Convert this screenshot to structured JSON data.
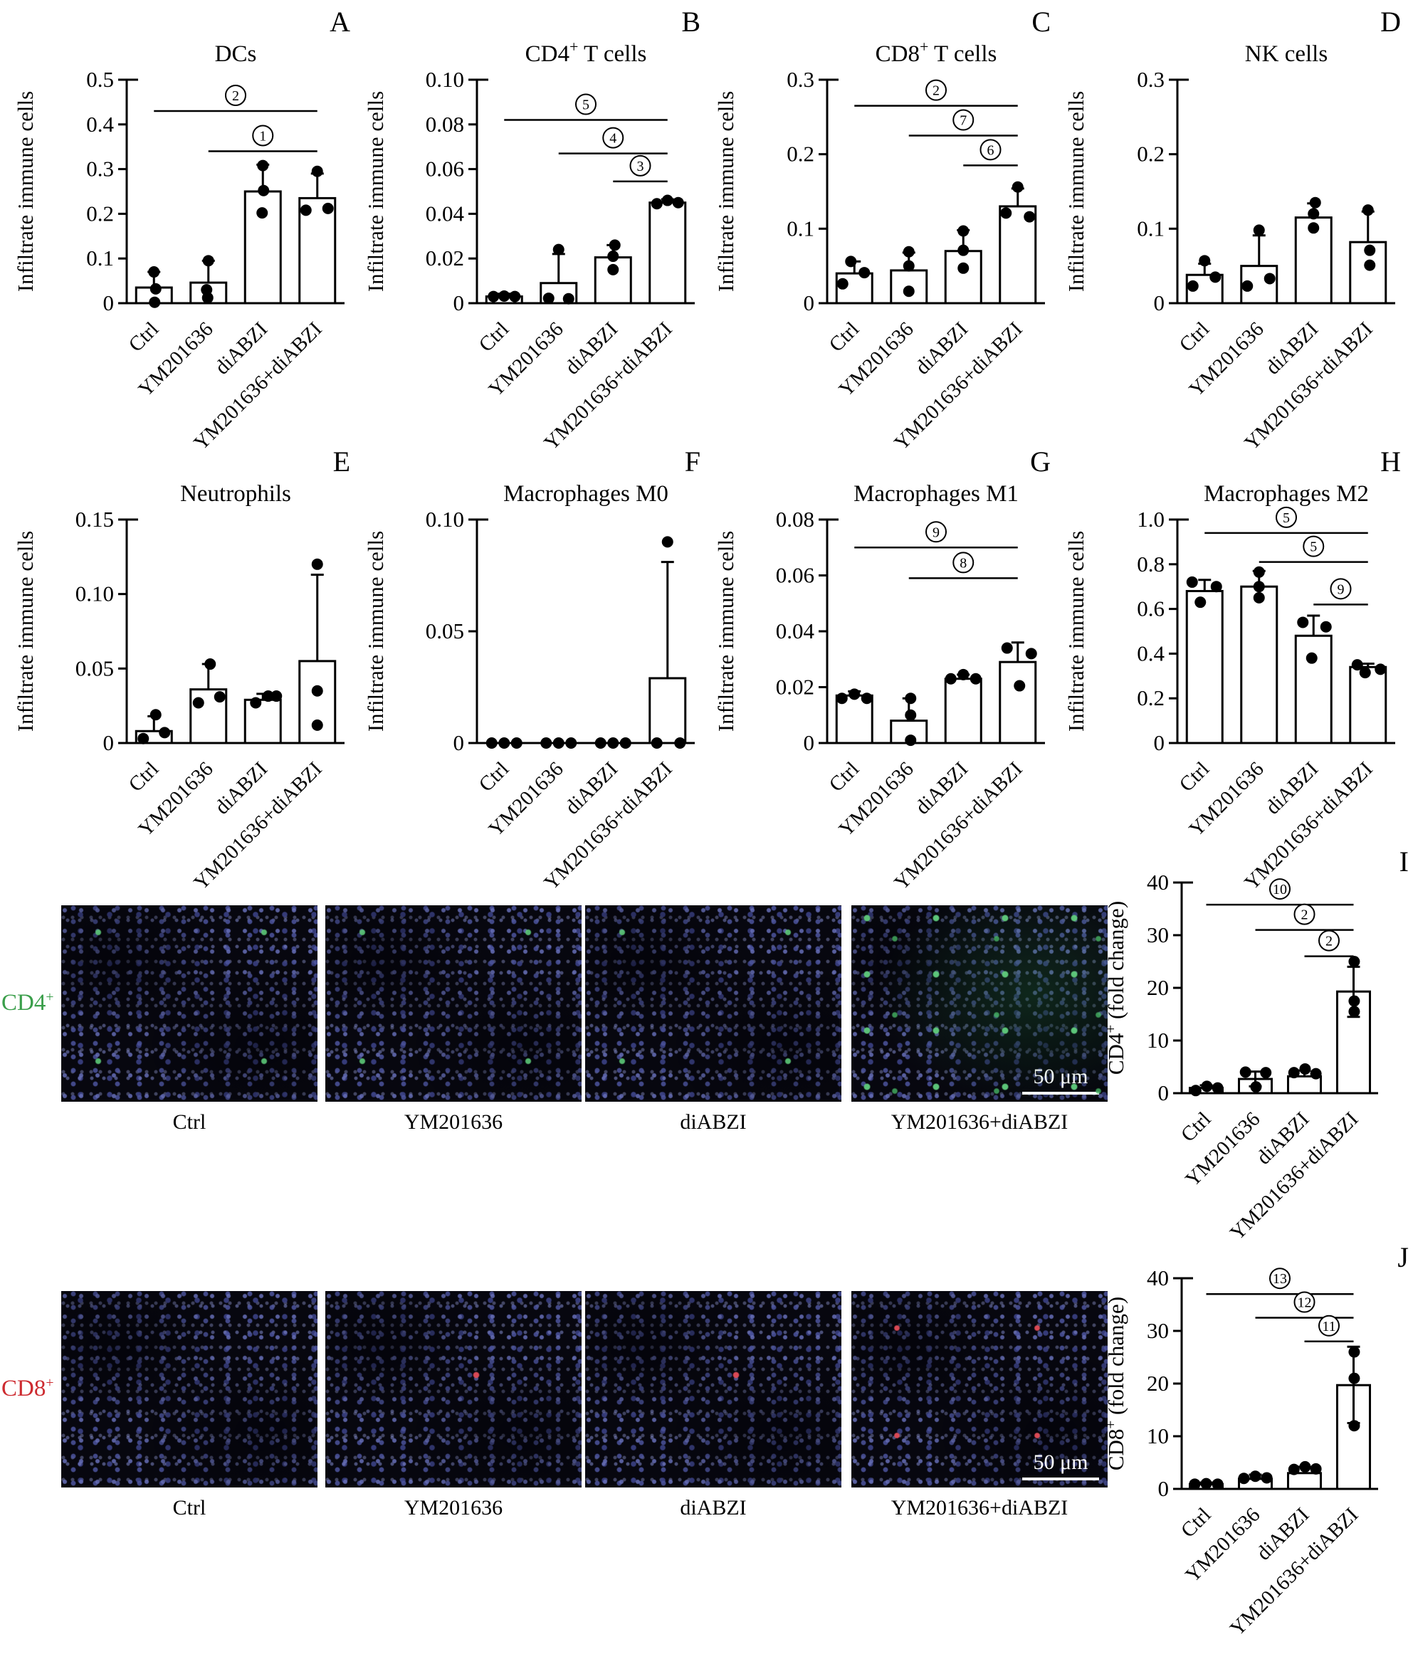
{
  "figure": {
    "panel_letters": [
      "A",
      "B",
      "C",
      "D",
      "E",
      "F",
      "G",
      "H",
      "I",
      "J"
    ],
    "groups": [
      "Ctrl",
      "YM201636",
      "diABZI",
      "YM201636+diABZI"
    ]
  },
  "chart_data": [
    {
      "letter": "A",
      "type": "bar",
      "title_pre": "DCs",
      "title_sup": null,
      "title_post": "",
      "ylabel_pre": "Infiltrate immune cells",
      "ylabel_sup": null,
      "ylabel_post": "",
      "ylim": [
        0,
        0.5
      ],
      "yticks": [
        0,
        0.1,
        0.2,
        0.3,
        0.4,
        0.5
      ],
      "ytick_labels": [
        "0",
        "0.1",
        "0.2",
        "0.3",
        "0.4",
        "0.5"
      ],
      "categories": [
        "Ctrl",
        "YM201636",
        "diABZI",
        "YM201636+diABZI"
      ],
      "values": [
        0.035,
        0.046,
        0.25,
        0.235
      ],
      "err_hi": [
        0.07,
        0.095,
        0.31,
        0.29
      ],
      "err_lo": [
        null,
        null,
        null,
        null
      ],
      "dots": [
        [
          [
            0,
            0.07
          ],
          [
            0.05,
            0.032
          ],
          [
            0.02,
            0.002
          ]
        ],
        [
          [
            0,
            0.095
          ],
          [
            -0.05,
            0.03
          ],
          [
            -0.02,
            0.012
          ]
        ],
        [
          [
            0,
            0.308
          ],
          [
            0.02,
            0.252
          ],
          [
            -0.02,
            0.202
          ]
        ],
        [
          [
            0,
            0.295
          ],
          [
            -0.32,
            0.208
          ],
          [
            0.3,
            0.212
          ]
        ]
      ],
      "sig": [
        {
          "n": "2",
          "from": 0,
          "to": 3,
          "y": 0.43
        },
        {
          "n": "1",
          "from": 1,
          "to": 3,
          "y": 0.34
        }
      ]
    },
    {
      "letter": "B",
      "type": "bar",
      "title_pre": "CD4",
      "title_sup": "+",
      "title_post": " T cells",
      "ylabel_pre": "Infiltrate immune cells",
      "ylabel_sup": null,
      "ylabel_post": "",
      "ylim": [
        0,
        0.1
      ],
      "yticks": [
        0,
        0.02,
        0.04,
        0.06,
        0.08,
        0.1
      ],
      "ytick_labels": [
        "0",
        "0.02",
        "0.04",
        "0.06",
        "0.08",
        "0.10"
      ],
      "categories": [
        "Ctrl",
        "YM201636",
        "diABZI",
        "YM201636+diABZI"
      ],
      "values": [
        0.003,
        0.009,
        0.0205,
        0.045
      ],
      "err_hi": [
        0.0042,
        0.022,
        0.026,
        0.0465
      ],
      "err_lo": [
        null,
        null,
        null,
        null
      ],
      "dots": [
        [
          [
            -0.3,
            0.003
          ],
          [
            0,
            0.0032
          ],
          [
            0.3,
            0.003
          ]
        ],
        [
          [
            0,
            0.024
          ],
          [
            -0.28,
            0.0022
          ],
          [
            0.28,
            0.002
          ]
        ],
        [
          [
            0.05,
            0.026
          ],
          [
            0,
            0.021
          ],
          [
            0,
            0.015
          ]
        ],
        [
          [
            -0.3,
            0.0445
          ],
          [
            0,
            0.046
          ],
          [
            0.3,
            0.045
          ]
        ]
      ],
      "sig": [
        {
          "n": "5",
          "from": 0,
          "to": 3,
          "y": 0.082
        },
        {
          "n": "4",
          "from": 1,
          "to": 3,
          "y": 0.067
        },
        {
          "n": "3",
          "from": 2,
          "to": 3,
          "y": 0.0545
        }
      ]
    },
    {
      "letter": "C",
      "type": "bar",
      "title_pre": "CD8",
      "title_sup": "+",
      "title_post": " T cells",
      "ylabel_pre": "Infiltrate immune cells",
      "ylabel_sup": null,
      "ylabel_post": "",
      "ylim": [
        0,
        0.3
      ],
      "yticks": [
        0,
        0.1,
        0.2,
        0.3
      ],
      "ytick_labels": [
        "0",
        "0.1",
        "0.2",
        "0.3"
      ],
      "categories": [
        "Ctrl",
        "YM201636",
        "diABZI",
        "YM201636+diABZI"
      ],
      "values": [
        0.04,
        0.044,
        0.07,
        0.13
      ],
      "err_hi": [
        0.056,
        0.068,
        0.098,
        0.154
      ],
      "err_lo": [
        null,
        null,
        null,
        null
      ],
      "dots": [
        [
          [
            -0.1,
            0.056
          ],
          [
            0.28,
            0.041
          ],
          [
            -0.33,
            0.026
          ]
        ],
        [
          [
            0,
            0.069
          ],
          [
            0,
            0.05
          ],
          [
            0,
            0.016
          ]
        ],
        [
          [
            0,
            0.097
          ],
          [
            0,
            0.071
          ],
          [
            0,
            0.047
          ]
        ],
        [
          [
            0,
            0.156
          ],
          [
            -0.33,
            0.121
          ],
          [
            0.33,
            0.116
          ]
        ]
      ],
      "sig": [
        {
          "n": "2",
          "from": 0,
          "to": 3,
          "y": 0.265
        },
        {
          "n": "7",
          "from": 1,
          "to": 3,
          "y": 0.225
        },
        {
          "n": "6",
          "from": 2,
          "to": 3,
          "y": 0.185
        }
      ]
    },
    {
      "letter": "D",
      "type": "bar",
      "title_pre": "NK cells",
      "title_sup": null,
      "title_post": "",
      "ylabel_pre": "Infiltrate immune cells",
      "ylabel_sup": null,
      "ylabel_post": "",
      "ylim": [
        0,
        0.3
      ],
      "yticks": [
        0,
        0.1,
        0.2,
        0.3
      ],
      "ytick_labels": [
        "0",
        "0.1",
        "0.2",
        "0.3"
      ],
      "categories": [
        "Ctrl",
        "YM201636",
        "diABZI",
        "YM201636+diABZI"
      ],
      "values": [
        0.038,
        0.05,
        0.115,
        0.082
      ],
      "err_hi": [
        0.053,
        0.091,
        0.134,
        0.123
      ],
      "err_lo": [
        null,
        null,
        null,
        null
      ],
      "dots": [
        [
          [
            0,
            0.057
          ],
          [
            0.3,
            0.035
          ],
          [
            -0.33,
            0.023
          ]
        ],
        [
          [
            0,
            0.098
          ],
          [
            0.3,
            0.033
          ],
          [
            -0.33,
            0.023
          ]
        ],
        [
          [
            0.05,
            0.135
          ],
          [
            0,
            0.12
          ],
          [
            0,
            0.101
          ]
        ],
        [
          [
            0,
            0.125
          ],
          [
            0.05,
            0.071
          ],
          [
            0.05,
            0.051
          ]
        ]
      ],
      "sig": []
    },
    {
      "letter": "E",
      "type": "bar",
      "title_pre": "Neutrophils",
      "title_sup": null,
      "title_post": "",
      "ylabel_pre": "Infiltrate immune cells",
      "ylabel_sup": null,
      "ylabel_post": "",
      "ylim": [
        0,
        0.15
      ],
      "yticks": [
        0,
        0.05,
        0.1,
        0.15
      ],
      "ytick_labels": [
        "0",
        "0.05",
        "0.10",
        "0.15"
      ],
      "categories": [
        "Ctrl",
        "YM201636",
        "diABZI",
        "YM201636+diABZI"
      ],
      "values": [
        0.008,
        0.036,
        0.029,
        0.055
      ],
      "err_hi": [
        0.018,
        0.053,
        0.033,
        0.113
      ],
      "err_lo": [
        null,
        null,
        null,
        null
      ],
      "dots": [
        [
          [
            0.05,
            0.019
          ],
          [
            0.3,
            0.007
          ],
          [
            -0.3,
            0.003
          ]
        ],
        [
          [
            0.05,
            0.053
          ],
          [
            0.32,
            0.031
          ],
          [
            -0.28,
            0.027
          ]
        ],
        [
          [
            0.15,
            0.0315
          ],
          [
            0.38,
            0.0315
          ],
          [
            -0.2,
            0.027
          ]
        ],
        [
          [
            0,
            0.12
          ],
          [
            0,
            0.035
          ],
          [
            0,
            0.012
          ]
        ]
      ],
      "sig": []
    },
    {
      "letter": "F",
      "type": "bar",
      "title_pre": "Macrophages M0",
      "title_sup": null,
      "title_post": "",
      "ylabel_pre": "Infiltrate immune cells",
      "ylabel_sup": null,
      "ylabel_post": "",
      "ylim": [
        0,
        0.1
      ],
      "yticks": [
        0,
        0.05,
        0.1
      ],
      "ytick_labels": [
        "0",
        "0.05",
        "0.10"
      ],
      "categories": [
        "Ctrl",
        "YM201636",
        "diABZI",
        "YM201636+diABZI"
      ],
      "values": [
        0,
        0,
        0,
        0.029
      ],
      "err_hi": [
        0,
        0,
        0,
        0.081
      ],
      "err_lo": [
        null,
        null,
        null,
        null
      ],
      "dots": [
        [
          [
            -0.35,
            0
          ],
          [
            0,
            0
          ],
          [
            0.35,
            0
          ]
        ],
        [
          [
            -0.35,
            0
          ],
          [
            0,
            0
          ],
          [
            0.35,
            0
          ]
        ],
        [
          [
            -0.35,
            0
          ],
          [
            0,
            0
          ],
          [
            0.35,
            0
          ]
        ],
        [
          [
            0,
            0.09
          ],
          [
            -0.3,
            0
          ],
          [
            0.35,
            0
          ]
        ]
      ],
      "sig": []
    },
    {
      "letter": "G",
      "type": "bar",
      "title_pre": "Macrophages M1",
      "title_sup": null,
      "title_post": "",
      "ylabel_pre": "Infiltrate immune cells",
      "ylabel_sup": null,
      "ylabel_post": "",
      "ylim": [
        0,
        0.08
      ],
      "yticks": [
        0,
        0.02,
        0.04,
        0.06,
        0.08
      ],
      "ytick_labels": [
        "0",
        "0.02",
        "0.04",
        "0.06",
        "0.08"
      ],
      "categories": [
        "Ctrl",
        "YM201636",
        "diABZI",
        "YM201636+diABZI"
      ],
      "values": [
        0.017,
        0.008,
        0.023,
        0.029
      ],
      "err_hi": [
        0.0185,
        0.016,
        0.0245,
        0.036
      ],
      "err_lo": [
        null,
        null,
        null,
        null
      ],
      "dots": [
        [
          [
            -0.35,
            0.016
          ],
          [
            0,
            0.0175
          ],
          [
            0.35,
            0.016
          ]
        ],
        [
          [
            0.05,
            0.016
          ],
          [
            0.05,
            0.01
          ],
          [
            0.05,
            0.001
          ]
        ],
        [
          [
            -0.35,
            0.023
          ],
          [
            0,
            0.0245
          ],
          [
            0.35,
            0.023
          ]
        ],
        [
          [
            -0.3,
            0.034
          ],
          [
            0.38,
            0.032
          ],
          [
            0.05,
            0.0205
          ]
        ]
      ],
      "sig": [
        {
          "n": "9",
          "from": 0,
          "to": 3,
          "y": 0.07
        },
        {
          "n": "8",
          "from": 1,
          "to": 3,
          "y": 0.059
        }
      ]
    },
    {
      "letter": "H",
      "type": "bar",
      "title_pre": "Macrophages M2",
      "title_sup": null,
      "title_post": "",
      "ylabel_pre": "Infiltrate immune cells",
      "ylabel_sup": null,
      "ylabel_post": "",
      "ylim": [
        0,
        1.0
      ],
      "yticks": [
        0,
        0.2,
        0.4,
        0.6,
        0.8,
        1.0
      ],
      "ytick_labels": [
        "0",
        "0.2",
        "0.4",
        "0.6",
        "0.8",
        "1.0"
      ],
      "categories": [
        "Ctrl",
        "YM201636",
        "diABZI",
        "YM201636+diABZI"
      ],
      "values": [
        0.68,
        0.7,
        0.48,
        0.34
      ],
      "err_hi": [
        0.73,
        0.77,
        0.57,
        0.355
      ],
      "err_lo": [
        null,
        null,
        null,
        null
      ],
      "dots": [
        [
          [
            -0.35,
            0.72
          ],
          [
            0.33,
            0.7
          ],
          [
            -0.12,
            0.63
          ]
        ],
        [
          [
            0,
            0.765
          ],
          [
            0,
            0.7
          ],
          [
            0,
            0.65
          ]
        ],
        [
          [
            -0.3,
            0.54
          ],
          [
            0.35,
            0.52
          ],
          [
            -0.05,
            0.38
          ]
        ],
        [
          [
            -0.3,
            0.35
          ],
          [
            0.35,
            0.33
          ],
          [
            -0.08,
            0.315
          ]
        ]
      ],
      "sig": [
        {
          "n": "5",
          "from": 0,
          "to": 3,
          "y": 0.94
        },
        {
          "n": "5",
          "from": 1,
          "to": 3,
          "y": 0.81
        },
        {
          "n": "9",
          "from": 2,
          "to": 3,
          "y": 0.62
        }
      ]
    },
    {
      "letter": "I",
      "type": "bar",
      "title_pre": null,
      "title_sup": null,
      "title_post": "",
      "ylabel_pre": "CD4",
      "ylabel_sup": "+",
      "ylabel_post": " (fold change)",
      "ylim": [
        0,
        40
      ],
      "yticks": [
        0,
        10,
        20,
        30,
        40
      ],
      "ytick_labels": [
        "0",
        "10",
        "20",
        "30",
        "40"
      ],
      "categories": [
        "Ctrl",
        "YM201636",
        "diABZI",
        "YM201636+diABZI"
      ],
      "values": [
        1.0,
        2.7,
        3.2,
        19.3
      ],
      "err_hi": [
        1.5,
        4.1,
        4.3,
        24.0
      ],
      "err_lo": [
        null,
        1.3,
        null,
        14.5
      ],
      "dots": [
        [
          [
            -0.32,
            0.5
          ],
          [
            0.02,
            1.3
          ],
          [
            0.35,
            1.0
          ]
        ],
        [
          [
            -0.3,
            4.0
          ],
          [
            0.32,
            3.9
          ],
          [
            0.02,
            1.2
          ]
        ],
        [
          [
            -0.32,
            3.9
          ],
          [
            0.02,
            4.6
          ],
          [
            0.35,
            3.7
          ]
        ],
        [
          [
            0.02,
            25.0
          ],
          [
            0.02,
            17.5
          ],
          [
            0.02,
            15.5
          ]
        ]
      ],
      "sig": [
        {
          "n": "10",
          "from": 0,
          "to": 3,
          "y": 35.8
        },
        {
          "n": "2",
          "from": 1,
          "to": 3,
          "y": 31.0
        },
        {
          "n": "2",
          "from": 2,
          "to": 3,
          "y": 26.0
        }
      ]
    },
    {
      "letter": "J",
      "type": "bar",
      "title_pre": null,
      "title_sup": null,
      "title_post": "",
      "ylabel_pre": "CD8",
      "ylabel_sup": "+",
      "ylabel_post": " (fold change)",
      "ylim": [
        0,
        40
      ],
      "yticks": [
        0,
        10,
        20,
        30,
        40
      ],
      "ytick_labels": [
        "0",
        "10",
        "20",
        "30",
        "40"
      ],
      "categories": [
        "Ctrl",
        "YM201636",
        "diABZI",
        "YM201636+diABZI"
      ],
      "values": [
        0.9,
        1.9,
        3.0,
        19.7
      ],
      "err_hi": [
        1.2,
        2.7,
        4.2,
        27.0
      ],
      "err_lo": [
        null,
        null,
        null,
        12.5
      ],
      "dots": [
        [
          [
            -0.35,
            0.9
          ],
          [
            0,
            1.0
          ],
          [
            0.35,
            0.9
          ]
        ],
        [
          [
            -0.35,
            2.0
          ],
          [
            0,
            2.4
          ],
          [
            0.35,
            2.1
          ]
        ],
        [
          [
            -0.32,
            3.7
          ],
          [
            0.02,
            4.2
          ],
          [
            0.35,
            3.8
          ]
        ],
        [
          [
            0.02,
            26.0
          ],
          [
            0.02,
            21.0
          ],
          [
            0.02,
            12.0
          ]
        ]
      ],
      "sig": [
        {
          "n": "13",
          "from": 0,
          "to": 3,
          "y": 37.0
        },
        {
          "n": "12",
          "from": 1,
          "to": 3,
          "y": 32.5
        },
        {
          "n": "11",
          "from": 2,
          "to": 3,
          "y": 28.0
        }
      ]
    }
  ],
  "microscopy": {
    "scale_bar_label": "50 μm",
    "rows": [
      {
        "marker": "CD4",
        "marker_sup": "+",
        "marker_color": "#3a9e4a",
        "tiles": [
          "Ctrl",
          "YM201636",
          "diABZI",
          "YM201636+diABZI"
        ]
      },
      {
        "marker": "CD8",
        "marker_sup": "+",
        "marker_color": "#cd2b30",
        "tiles": [
          "Ctrl",
          "YM201636",
          "diABZI",
          "YM201636+diABZI"
        ]
      }
    ]
  }
}
